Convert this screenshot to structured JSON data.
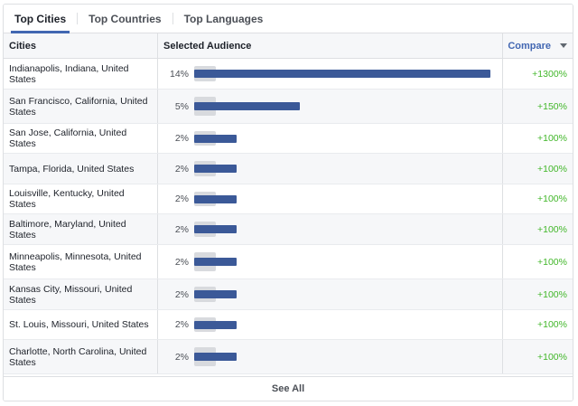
{
  "tabs": [
    "Top Cities",
    "Top Countries",
    "Top Languages"
  ],
  "header": {
    "cities": "Cities",
    "audience": "Selected Audience",
    "compare": "Compare"
  },
  "rows": [
    {
      "city": "Indianapolis, Indiana, United States",
      "pct": "14%",
      "share": 14,
      "compare": "+1300%"
    },
    {
      "city": "San Francisco, California, United States",
      "pct": "5%",
      "share": 5,
      "compare": "+150%"
    },
    {
      "city": "San Jose, California, United States",
      "pct": "2%",
      "share": 2,
      "compare": "+100%"
    },
    {
      "city": "Tampa, Florida, United States",
      "pct": "2%",
      "share": 2,
      "compare": "+100%"
    },
    {
      "city": "Louisville, Kentucky, United States",
      "pct": "2%",
      "share": 2,
      "compare": "+100%"
    },
    {
      "city": "Baltimore, Maryland, United States",
      "pct": "2%",
      "share": 2,
      "compare": "+100%"
    },
    {
      "city": "Minneapolis, Minnesota, United States",
      "pct": "2%",
      "share": 2,
      "compare": "+100%"
    },
    {
      "city": "Kansas City, Missouri, United States",
      "pct": "2%",
      "share": 2,
      "compare": "+100%"
    },
    {
      "city": "St. Louis, Missouri, United States",
      "pct": "2%",
      "share": 2,
      "compare": "+100%"
    },
    {
      "city": "Charlotte, North Carolina, United States",
      "pct": "2%",
      "share": 2,
      "compare": "+100%"
    }
  ],
  "footer": {
    "see_all": "See All"
  },
  "colors": {
    "accent": "#4267b2",
    "bar": "#3b5998",
    "positive": "#42b72a"
  },
  "icons": {
    "compare_menu": "caret-down-icon"
  }
}
